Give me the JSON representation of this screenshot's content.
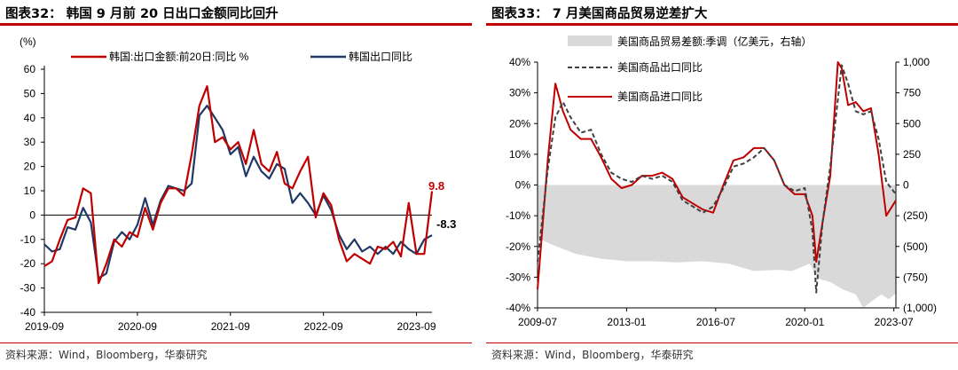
{
  "charts": [
    {
      "id": "fig32",
      "title": "图表32： 韩国 9 月前 20 日出口金额同比回升",
      "source": "资料来源：Wind，Bloomberg，华泰研究",
      "unit_label": "(%)",
      "legend": [
        "韩国:出口金额:前20日:同比 %",
        "韩国出口同比"
      ],
      "annotations": [
        "9.8",
        "-8.3"
      ],
      "colors": {
        "series1": "#c00000",
        "series2": "#1f3864"
      }
    },
    {
      "id": "fig33",
      "title": "图表33： 7 月美国商品贸易逆差扩大",
      "source": "资料来源：Wind，Bloomberg，华泰研究",
      "legend": [
        "美国商品贸易差额:季调（亿美元，右轴）",
        "美国商品出口同比",
        "美国商品进口同比"
      ],
      "colors": {
        "area": "#d9d9d9",
        "export": "#404040",
        "import": "#c00000"
      }
    }
  ],
  "chart_data": [
    {
      "type": "line",
      "x_ticks": [
        "2019-09",
        "2020-09",
        "2021-09",
        "2022-09",
        "2023-09"
      ],
      "y_ticks": [
        "60",
        "50",
        "40",
        "30",
        "20",
        "10",
        "0",
        "-10",
        "-20",
        "-30",
        "-40"
      ],
      "ylim": [
        -40,
        60
      ],
      "x_start": "2019-09",
      "x_end": "2023-09",
      "series": [
        {
          "name": "韩国:出口金额:前20日:同比 %",
          "values": [
            -21,
            -19,
            -10,
            -2,
            -1,
            11,
            9,
            -28,
            -20,
            -10,
            -13,
            -7,
            -9,
            3,
            -6,
            5,
            11,
            11,
            8,
            25,
            45,
            53,
            30,
            32,
            27,
            30,
            21,
            35,
            21,
            18,
            26,
            13,
            11,
            18,
            24,
            -1,
            9,
            4,
            -10,
            -19,
            -16,
            -18,
            -20,
            -13,
            -14,
            -11,
            -17,
            5,
            -16,
            -16,
            9.8
          ]
        },
        {
          "name": "韩国出口同比",
          "values": [
            -12,
            -15,
            -14,
            -5,
            -6,
            3,
            -3,
            -26,
            -24,
            -11,
            -7,
            -10,
            -4,
            7,
            -4,
            6,
            12,
            11,
            10,
            13,
            41,
            45,
            40,
            35,
            25,
            28,
            16,
            24,
            18,
            15,
            21,
            19,
            5,
            9,
            5,
            0,
            8,
            2,
            -8,
            -14,
            -10,
            -15,
            -13,
            -16,
            -13,
            -16,
            -11,
            -14,
            -16,
            -10,
            -8.3
          ]
        }
      ]
    },
    {
      "type": "line",
      "x_ticks": [
        "2009-07",
        "2013-01",
        "2016-07",
        "2020-01",
        "2023-07"
      ],
      "left_ticks": [
        "40%",
        "30%",
        "20%",
        "10%",
        "0%",
        "-10%",
        "-20%",
        "-30%",
        "-40%"
      ],
      "right_ticks": [
        "1,000",
        "750",
        "500",
        "250",
        "0",
        "(250)",
        "(500)",
        "(750)",
        "(1,000)"
      ],
      "ylim_left": [
        -40,
        40
      ],
      "ylim_right": [
        -1000,
        1000
      ],
      "x_start": "2009-07",
      "x_end": "2023-07",
      "series": [
        {
          "name": "美国商品贸易差额:季调（亿美元，右轴）",
          "axis": "right",
          "kind": "area",
          "x": [
            2009.5,
            2010.0,
            2010.5,
            2011.0,
            2012.0,
            2013.0,
            2014.0,
            2015.0,
            2016.0,
            2017.0,
            2018.0,
            2019.0,
            2019.5,
            2020.2,
            2020.5,
            2021.0,
            2021.5,
            2022.0,
            2022.3,
            2022.6,
            2023.0,
            2023.3,
            2023.58
          ],
          "values": [
            -430,
            -480,
            -520,
            -560,
            -600,
            -620,
            -620,
            -630,
            -620,
            -640,
            -700,
            -690,
            -700,
            -640,
            -760,
            -790,
            -850,
            -890,
            -1000,
            -950,
            -890,
            -930,
            -880
          ]
        },
        {
          "name": "美国商品出口同比",
          "axis": "left",
          "x": [
            2009.5,
            2009.9,
            2010.2,
            2010.5,
            2010.8,
            2011.2,
            2011.6,
            2012.0,
            2012.4,
            2012.8,
            2013.2,
            2013.6,
            2014.0,
            2014.4,
            2014.8,
            2015.2,
            2015.6,
            2016.0,
            2016.4,
            2016.8,
            2017.2,
            2017.6,
            2018.0,
            2018.4,
            2018.8,
            2019.2,
            2019.6,
            2020.0,
            2020.3,
            2020.45,
            2020.7,
            2021.0,
            2021.3,
            2021.45,
            2021.7,
            2022.0,
            2022.3,
            2022.6,
            2022.9,
            2023.2,
            2023.58
          ],
          "values": [
            -25,
            5,
            22,
            27,
            22,
            17,
            18,
            10,
            4,
            2,
            1,
            3,
            2,
            3,
            1,
            -5,
            -7,
            -9,
            -7,
            -1,
            6,
            7,
            9,
            12,
            8,
            0,
            -2,
            -1,
            -15,
            -35,
            -12,
            6,
            28,
            39,
            33,
            24,
            23,
            24,
            15,
            1,
            -3
          ]
        },
        {
          "name": "美国商品进口同比",
          "axis": "left",
          "x": [
            2009.5,
            2009.9,
            2010.2,
            2010.5,
            2010.8,
            2011.2,
            2011.6,
            2012.0,
            2012.4,
            2012.8,
            2013.2,
            2013.6,
            2014.0,
            2014.4,
            2014.8,
            2015.2,
            2015.6,
            2016.0,
            2016.4,
            2016.8,
            2017.2,
            2017.6,
            2018.0,
            2018.4,
            2018.8,
            2019.2,
            2019.6,
            2020.0,
            2020.3,
            2020.45,
            2020.7,
            2021.0,
            2021.3,
            2021.45,
            2021.7,
            2022.0,
            2022.3,
            2022.6,
            2022.9,
            2023.2,
            2023.58
          ],
          "values": [
            -34,
            8,
            33,
            24,
            18,
            15,
            15,
            9,
            2,
            -1,
            0,
            3,
            3,
            4,
            2,
            -4,
            -6,
            -8,
            -9,
            0,
            8,
            9,
            12,
            12,
            8,
            0,
            -3,
            -3,
            -10,
            -25,
            -12,
            3,
            40,
            38,
            26,
            27,
            24,
            25,
            10,
            -10,
            -5
          ]
        }
      ]
    }
  ]
}
